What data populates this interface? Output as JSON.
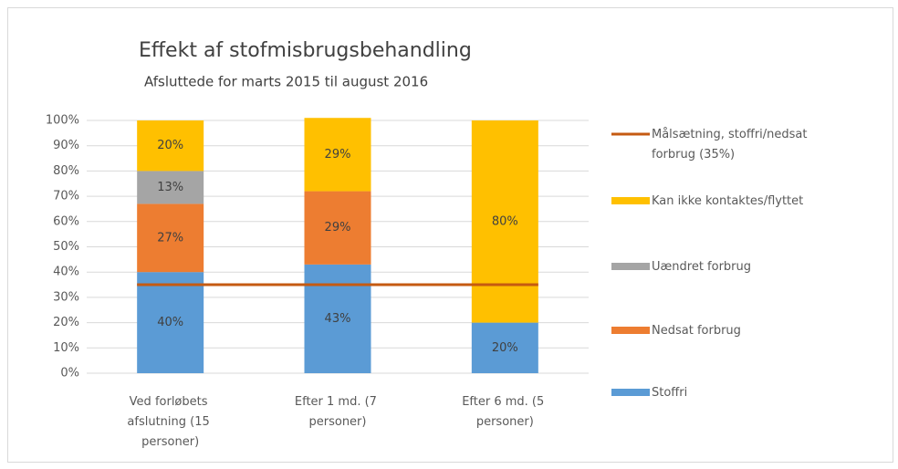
{
  "chart_data": {
    "type": "bar",
    "stacked": true,
    "title": "Effekt af stofmisbrugsbehandling",
    "subtitle": "Afsluttede for marts 2015 til august 2016",
    "categories": [
      "Ved forløbets afslutning (15 personer)",
      "Efter 1 md. (7 personer)",
      "Efter 6 md. (5 personer)"
    ],
    "series": [
      {
        "name": "Stoffri",
        "color": "#5b9bd5",
        "values": [
          40,
          43,
          20
        ],
        "value_labels": [
          "40%",
          "43%",
          "20%"
        ]
      },
      {
        "name": "Nedsat forbrug",
        "color": "#ed7d31",
        "values": [
          27,
          29,
          0
        ],
        "value_labels": [
          "27%",
          "29%",
          null
        ]
      },
      {
        "name": "Uændret forbrug",
        "color": "#a5a5a5",
        "values": [
          13,
          0,
          0
        ],
        "value_labels": [
          "13%",
          null,
          null
        ]
      },
      {
        "name": "Kan ikke kontaktes/flyttet",
        "color": "#ffc000",
        "values": [
          20,
          29,
          80
        ],
        "value_labels": [
          "20%",
          "29%",
          "80%"
        ]
      },
      {
        "name": "Målsætning, stoffri/nedsat forbrug (35%)",
        "color": "#c55a11",
        "type": "line",
        "values": [
          35,
          35,
          35
        ]
      }
    ],
    "ylim": [
      0,
      100
    ],
    "yticks": [
      {
        "value": 0,
        "label": "0%"
      },
      {
        "value": 10,
        "label": "10%"
      },
      {
        "value": 20,
        "label": "20%"
      },
      {
        "value": 30,
        "label": "30%"
      },
      {
        "value": 40,
        "label": "40%"
      },
      {
        "value": 50,
        "label": "50%"
      },
      {
        "value": 60,
        "label": "60%"
      },
      {
        "value": 70,
        "label": "70%"
      },
      {
        "value": 80,
        "label": "80%"
      },
      {
        "value": 90,
        "label": "90%"
      },
      {
        "value": 100,
        "label": "100%"
      }
    ],
    "grid": true,
    "legend": "right"
  }
}
